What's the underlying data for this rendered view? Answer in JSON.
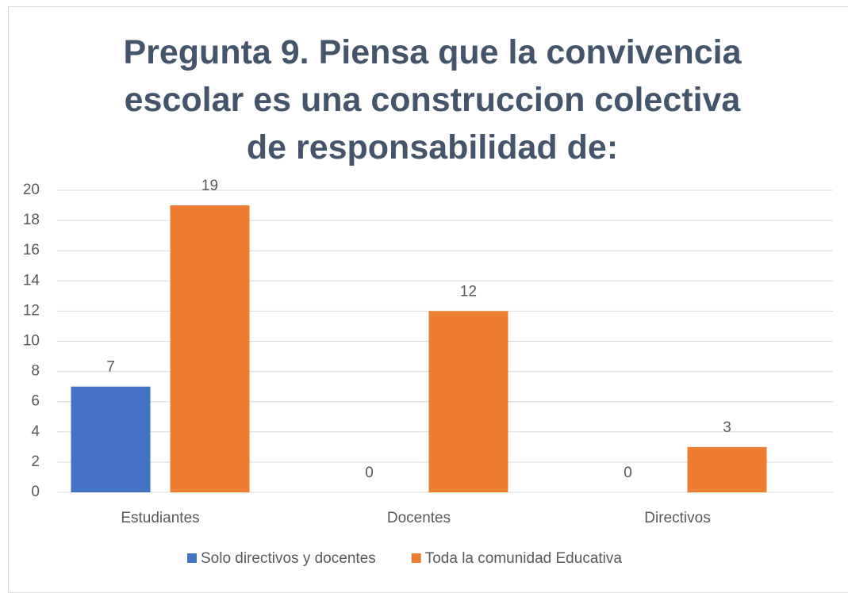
{
  "chart_data": {
    "type": "bar",
    "title": "Pregunta 9. Piensa que la convivencia escolar es una construccion colectiva de responsabilidad de:",
    "categories": [
      "Estudiantes",
      "Docentes",
      "Directivos"
    ],
    "series": [
      {
        "name": "Solo directivos y docentes",
        "color": "#4472c4",
        "values": [
          7,
          0,
          0
        ]
      },
      {
        "name": "Toda la comunidad Educativa",
        "color": "#ed7d31",
        "values": [
          19,
          12,
          3
        ]
      }
    ],
    "ylim": [
      0,
      20
    ],
    "yticks": [
      0,
      2,
      4,
      6,
      8,
      10,
      12,
      14,
      16,
      18,
      20
    ],
    "grid": true,
    "legend": "bottom"
  }
}
